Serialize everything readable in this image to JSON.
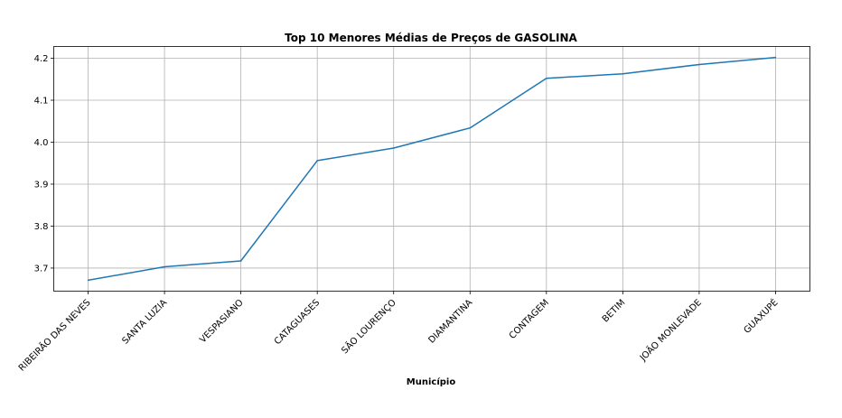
{
  "chart_data": {
    "type": "line",
    "title": "Top 10 Menores Médias de Preços de GASOLINA",
    "xlabel": "Município",
    "ylabel": "",
    "categories": [
      "RIBEIRÃO DAS NEVES",
      "SANTA LUZIA",
      "VESPASIANO",
      "CATAGUASES",
      "SÃO LOURENÇO",
      "DIAMANTINA",
      "CONTAGEM",
      "BETIM",
      "JOÃO MONLEVADE",
      "GUAXUPÉ"
    ],
    "values": [
      3.671,
      3.703,
      3.717,
      3.956,
      3.986,
      4.034,
      4.152,
      4.163,
      4.185,
      4.202
    ],
    "yticks": [
      3.7,
      3.8,
      3.9,
      4.0,
      4.1,
      4.2
    ],
    "ytick_labels": [
      "3.7",
      "3.8",
      "3.9",
      "4.0",
      "4.1",
      "4.2"
    ],
    "ylim": [
      3.645,
      4.228
    ],
    "grid": true,
    "line_color": "#1f77b4"
  }
}
